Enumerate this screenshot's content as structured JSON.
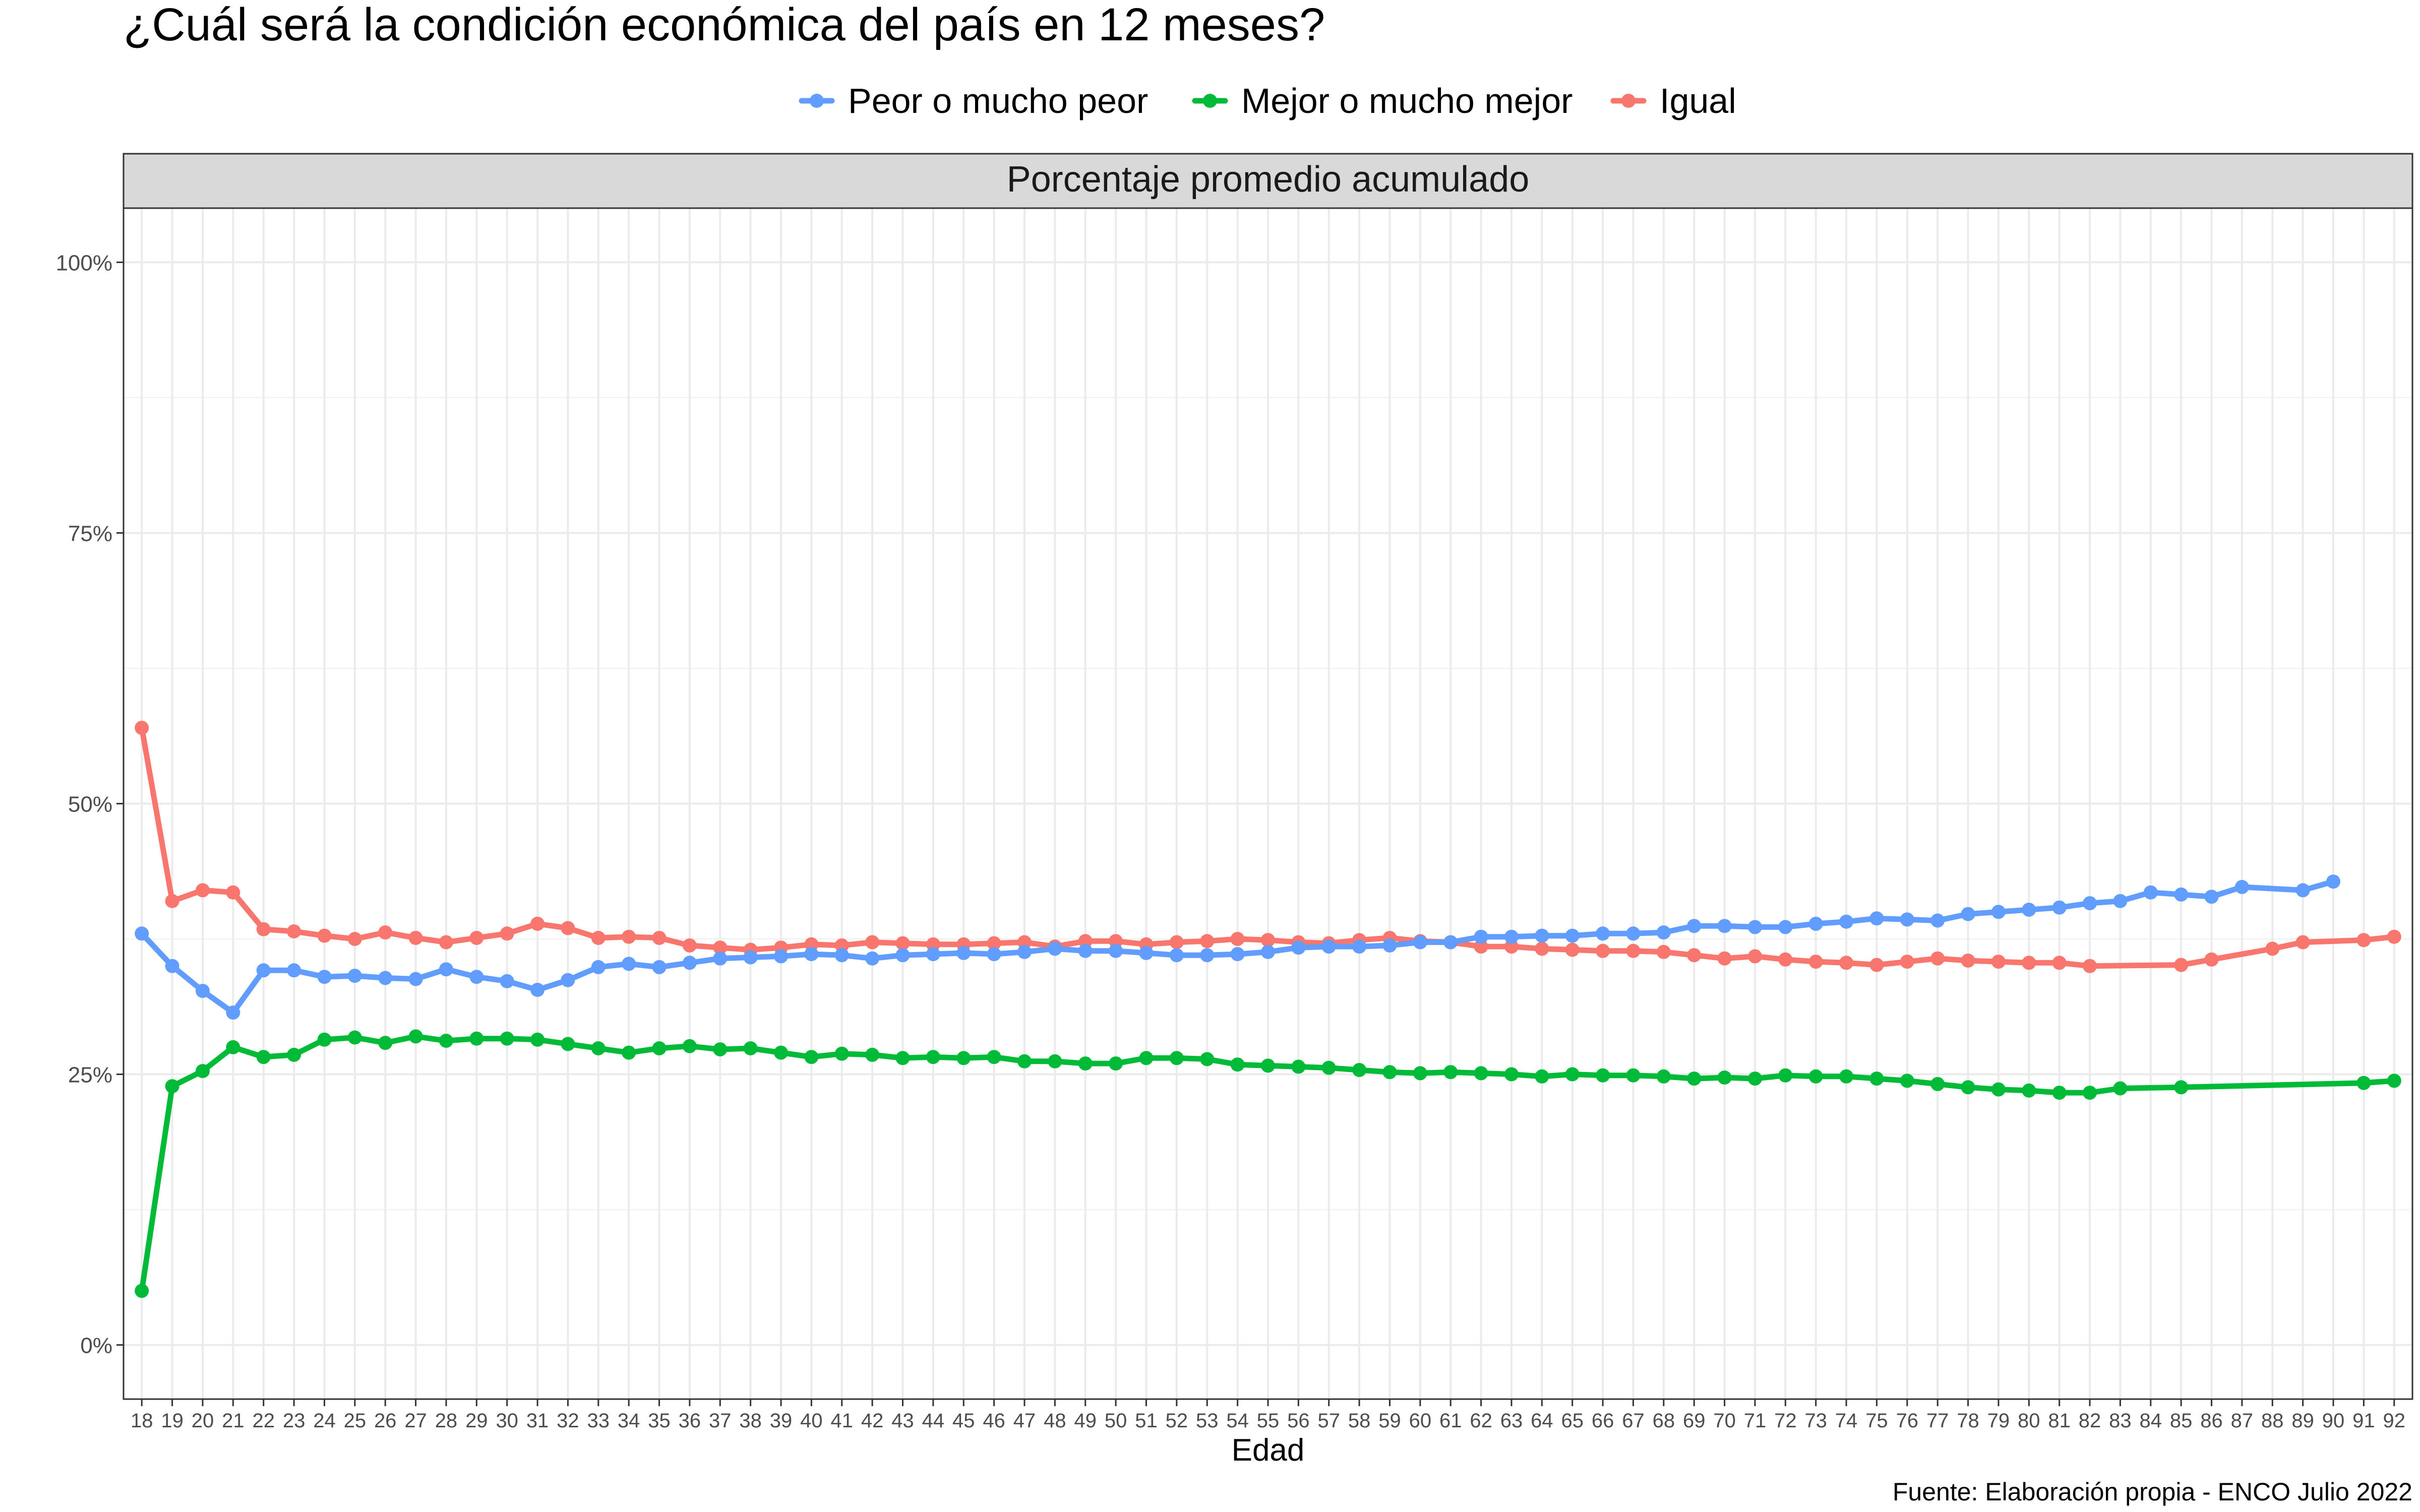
{
  "chart_data": {
    "type": "line",
    "title": "¿Cuál será la condición económica del país en 12 meses?",
    "facet_label": "Porcentaje promedio acumulado",
    "xlabel": "Edad",
    "ylabel": "",
    "caption": "Fuente: Elaboración propia - ENCO Julio 2022",
    "legend_position": "top",
    "grid": true,
    "x_ticks": [
      18,
      19,
      20,
      21,
      22,
      23,
      24,
      25,
      26,
      27,
      28,
      29,
      30,
      31,
      32,
      33,
      34,
      35,
      36,
      37,
      38,
      39,
      40,
      41,
      42,
      43,
      44,
      45,
      46,
      47,
      48,
      49,
      50,
      51,
      52,
      53,
      54,
      55,
      56,
      57,
      58,
      59,
      60,
      61,
      62,
      63,
      64,
      65,
      66,
      67,
      68,
      69,
      70,
      71,
      72,
      73,
      74,
      75,
      76,
      77,
      78,
      79,
      80,
      81,
      82,
      83,
      84,
      85,
      86,
      87,
      88,
      89,
      90,
      91,
      92
    ],
    "xlim": [
      17.4,
      92.6
    ],
    "ylim": [
      -0.05,
      1.05
    ],
    "y_ticks": [
      0,
      0.25,
      0.5,
      0.75,
      1.0
    ],
    "y_tick_labels": [
      "0%",
      "25%",
      "50%",
      "75%",
      "100%"
    ],
    "series": [
      {
        "name": "Peor o mucho peor",
        "color": "#619CFF",
        "x": [
          18,
          19,
          20,
          21,
          22,
          23,
          24,
          25,
          26,
          27,
          28,
          29,
          30,
          31,
          32,
          33,
          34,
          35,
          36,
          37,
          38,
          39,
          40,
          41,
          42,
          43,
          44,
          45,
          46,
          47,
          48,
          49,
          50,
          51,
          52,
          53,
          54,
          55,
          56,
          57,
          58,
          59,
          60,
          61,
          62,
          63,
          64,
          65,
          66,
          67,
          68,
          69,
          70,
          71,
          72,
          73,
          74,
          75,
          76,
          77,
          78,
          79,
          80,
          81,
          82,
          83,
          84,
          85,
          86,
          87,
          89,
          90
        ],
        "values": [
          0.38,
          0.35,
          0.327,
          0.307,
          0.346,
          0.346,
          0.34,
          0.341,
          0.339,
          0.338,
          0.347,
          0.34,
          0.336,
          0.328,
          0.337,
          0.349,
          0.352,
          0.349,
          0.353,
          0.357,
          0.358,
          0.359,
          0.361,
          0.36,
          0.357,
          0.36,
          0.361,
          0.362,
          0.361,
          0.363,
          0.366,
          0.364,
          0.364,
          0.362,
          0.36,
          0.36,
          0.361,
          0.363,
          0.367,
          0.368,
          0.368,
          0.369,
          0.372,
          0.372,
          0.377,
          0.377,
          0.378,
          0.378,
          0.38,
          0.38,
          0.381,
          0.387,
          0.387,
          0.386,
          0.386,
          0.389,
          0.391,
          0.394,
          0.393,
          0.392,
          0.398,
          0.4,
          0.402,
          0.404,
          0.408,
          0.41,
          0.418,
          0.416,
          0.414,
          0.423,
          0.42,
          0.428
        ]
      },
      {
        "name": "Mejor o mucho mejor",
        "color": "#00BA38",
        "x": [
          18,
          19,
          20,
          21,
          22,
          23,
          24,
          25,
          26,
          27,
          28,
          29,
          30,
          31,
          32,
          33,
          34,
          35,
          36,
          37,
          38,
          39,
          40,
          41,
          42,
          43,
          44,
          45,
          46,
          47,
          48,
          49,
          50,
          51,
          52,
          53,
          54,
          55,
          56,
          57,
          58,
          59,
          60,
          61,
          62,
          63,
          64,
          65,
          66,
          67,
          68,
          69,
          70,
          71,
          72,
          73,
          74,
          75,
          76,
          77,
          78,
          79,
          80,
          81,
          82,
          83,
          85,
          91,
          92
        ],
        "values": [
          0.05,
          0.239,
          0.253,
          0.275,
          0.266,
          0.268,
          0.282,
          0.284,
          0.279,
          0.285,
          0.281,
          0.283,
          0.283,
          0.282,
          0.278,
          0.274,
          0.27,
          0.274,
          0.276,
          0.273,
          0.274,
          0.27,
          0.266,
          0.269,
          0.268,
          0.265,
          0.266,
          0.265,
          0.266,
          0.262,
          0.262,
          0.26,
          0.26,
          0.265,
          0.265,
          0.264,
          0.259,
          0.258,
          0.257,
          0.256,
          0.254,
          0.252,
          0.251,
          0.252,
          0.251,
          0.25,
          0.248,
          0.25,
          0.249,
          0.249,
          0.248,
          0.246,
          0.247,
          0.246,
          0.249,
          0.248,
          0.248,
          0.246,
          0.244,
          0.241,
          0.238,
          0.236,
          0.235,
          0.233,
          0.233,
          0.237,
          0.238,
          0.242,
          0.244
        ]
      },
      {
        "name": "Igual",
        "color": "#F8766D",
        "x": [
          18,
          19,
          20,
          21,
          22,
          23,
          24,
          25,
          26,
          27,
          28,
          29,
          30,
          31,
          32,
          33,
          34,
          35,
          36,
          37,
          38,
          39,
          40,
          41,
          42,
          43,
          44,
          45,
          46,
          47,
          48,
          49,
          50,
          51,
          52,
          53,
          54,
          55,
          56,
          57,
          58,
          59,
          60,
          61,
          62,
          63,
          64,
          65,
          66,
          67,
          68,
          69,
          70,
          71,
          72,
          73,
          74,
          75,
          76,
          77,
          78,
          79,
          80,
          81,
          82,
          85,
          86,
          88,
          89,
          91,
          92
        ],
        "values": [
          0.57,
          0.41,
          0.42,
          0.418,
          0.384,
          0.382,
          0.378,
          0.375,
          0.381,
          0.376,
          0.372,
          0.376,
          0.38,
          0.389,
          0.385,
          0.376,
          0.377,
          0.376,
          0.369,
          0.367,
          0.365,
          0.367,
          0.37,
          0.369,
          0.372,
          0.371,
          0.37,
          0.37,
          0.371,
          0.372,
          0.368,
          0.373,
          0.373,
          0.37,
          0.372,
          0.373,
          0.375,
          0.374,
          0.372,
          0.371,
          0.374,
          0.376,
          0.373,
          0.372,
          0.368,
          0.368,
          0.366,
          0.365,
          0.364,
          0.364,
          0.363,
          0.36,
          0.357,
          0.359,
          0.356,
          0.354,
          0.353,
          0.351,
          0.354,
          0.357,
          0.355,
          0.354,
          0.353,
          0.353,
          0.35,
          0.351,
          0.356,
          0.366,
          0.372,
          0.374,
          0.377
        ]
      }
    ]
  }
}
